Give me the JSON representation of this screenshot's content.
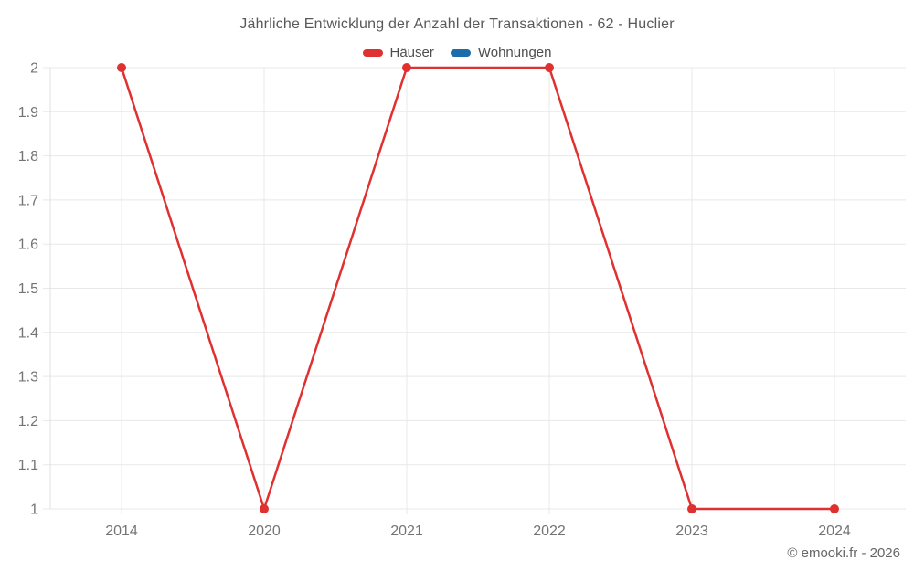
{
  "chart_data": {
    "type": "line",
    "title": "Jährliche Entwicklung der Anzahl der Transaktionen - 62 - Huclier",
    "categories": [
      "2014",
      "2020",
      "2021",
      "2022",
      "2023",
      "2024"
    ],
    "series": [
      {
        "name": "Häuser",
        "color": "#e03131",
        "values": [
          2,
          1,
          2,
          2,
          1,
          1
        ]
      },
      {
        "name": "Wohnungen",
        "color": "#1b6ca8",
        "values": []
      }
    ],
    "xlabel": "",
    "ylabel": "",
    "ylim": [
      1,
      2
    ],
    "yticks": [
      2,
      1.9,
      1.8,
      1.7,
      1.6,
      1.5,
      1.4,
      1.3,
      1.2,
      1.1,
      1
    ],
    "ytick_labels": [
      "2",
      "1.9",
      "1.8",
      "1.7",
      "1.6",
      "1.5",
      "1.4",
      "1.3",
      "1.2",
      "1.1",
      "1"
    ],
    "grid": true,
    "legend_position": "top",
    "marker": "circle"
  },
  "watermark": "© emooki.fr - 2026",
  "colors": {
    "haeuser": "#e03131",
    "wohnungen": "#1b6ca8",
    "grid_line": "#e8e8e8",
    "axis_border": "#e0e0e0",
    "tick_label": "#747474",
    "title_text": "#595959",
    "legend_text": "#4d4d4d",
    "watermark_text": "#666666",
    "background": "#ffffff"
  }
}
